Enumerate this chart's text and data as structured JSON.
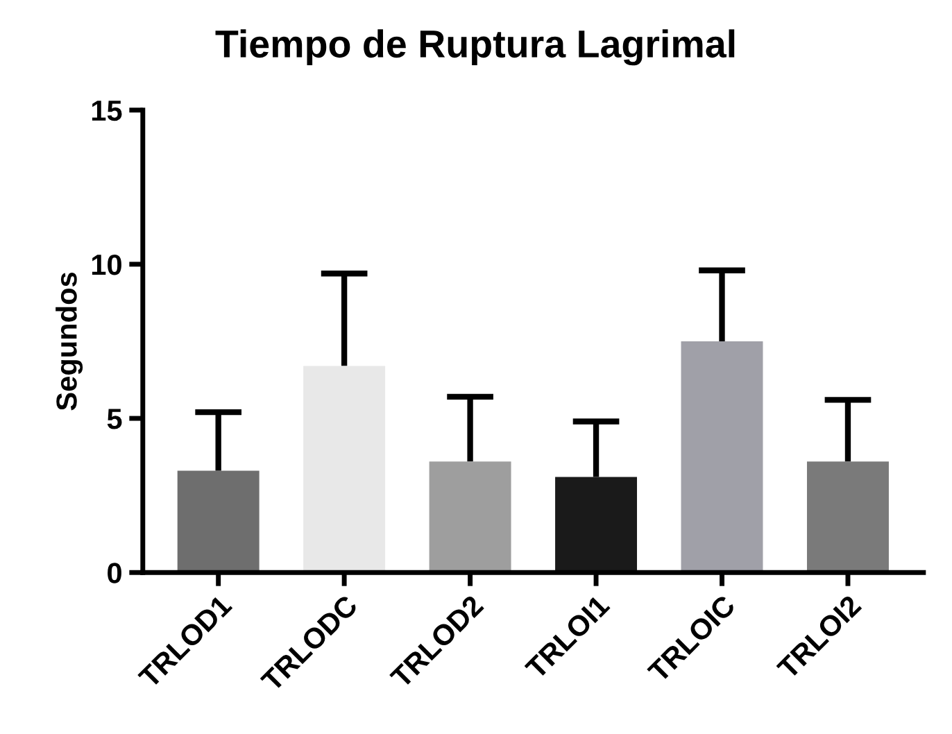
{
  "chart_data": {
    "type": "bar",
    "title": "Tiempo de Ruptura Lagrimal",
    "ylabel": "Segundos",
    "categories": [
      "TRLOD1",
      "TRLODC",
      "TRLOD2",
      "TRLOI1",
      "TRLOIC",
      "TRLOI2"
    ],
    "values": [
      3.3,
      6.7,
      3.6,
      3.1,
      7.5,
      3.6
    ],
    "errors": [
      [
        3.3,
        5.2
      ],
      [
        6.7,
        9.7
      ],
      [
        3.6,
        5.7
      ],
      [
        3.1,
        4.9
      ],
      [
        7.5,
        9.8
      ],
      [
        3.6,
        5.6
      ]
    ],
    "colors": [
      "#6e6e6e",
      "#e8e8e8",
      "#9e9e9e",
      "#1a1a1a",
      "#a0a0a8",
      "#7a7a7a"
    ],
    "ylim": [
      0,
      15
    ],
    "yticks": [
      0,
      5,
      10,
      15
    ],
    "grid": false,
    "legend": false
  }
}
